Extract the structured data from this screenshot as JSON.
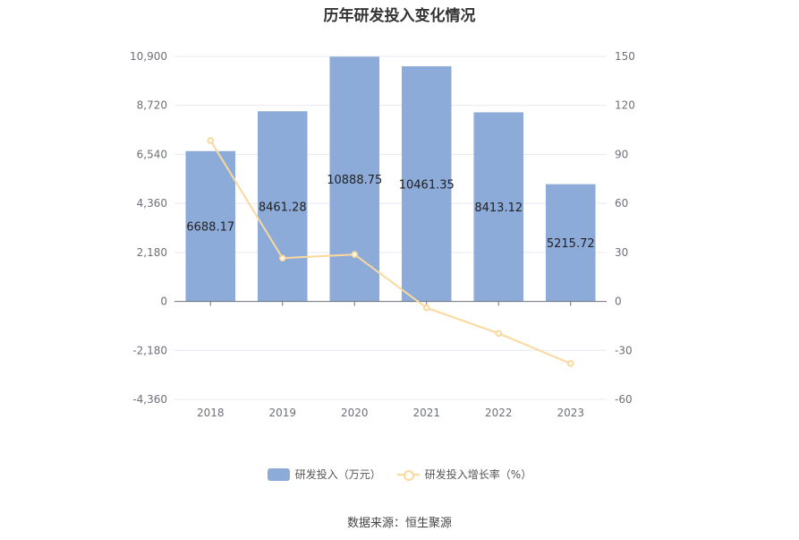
{
  "chart_data": {
    "type": "bar",
    "title": "历年研发投入变化情况",
    "categories": [
      "2018",
      "2019",
      "2020",
      "2021",
      "2022",
      "2023"
    ],
    "series": [
      {
        "name": "研发投入（万元）",
        "type": "bar",
        "axis": "left",
        "color": "#8cabd9",
        "values": [
          6688.17,
          8461.28,
          10888.75,
          10461.35,
          8413.12,
          5215.72
        ],
        "labels": [
          "6688.17",
          "8461.28",
          "10888.75",
          "10461.35",
          "8413.12",
          "5215.72"
        ]
      },
      {
        "name": "研发投入增长率（%）",
        "type": "line",
        "axis": "right",
        "color": "#fbd89c",
        "values": [
          98.5,
          26.5,
          28.7,
          -3.9,
          -19.6,
          -38.0
        ]
      }
    ],
    "y_left": {
      "ylim": [
        -4360,
        10900
      ],
      "ticks": [
        10900,
        8720,
        6540,
        4360,
        2180,
        0,
        -2180,
        -4360
      ],
      "tick_labels": [
        "10,900",
        "8,720",
        "6,540",
        "4,360",
        "2,180",
        "0",
        "-2,180",
        "-4,360"
      ]
    },
    "y_right": {
      "ylim": [
        -60,
        150
      ],
      "ticks": [
        150,
        120,
        90,
        60,
        30,
        0,
        -30,
        -60
      ],
      "tick_labels": [
        "150",
        "120",
        "90",
        "60",
        "30",
        "0",
        "-30",
        "-60"
      ]
    },
    "grid": true,
    "legend_position": "bottom-center"
  },
  "source": "数据来源：恒生聚源"
}
